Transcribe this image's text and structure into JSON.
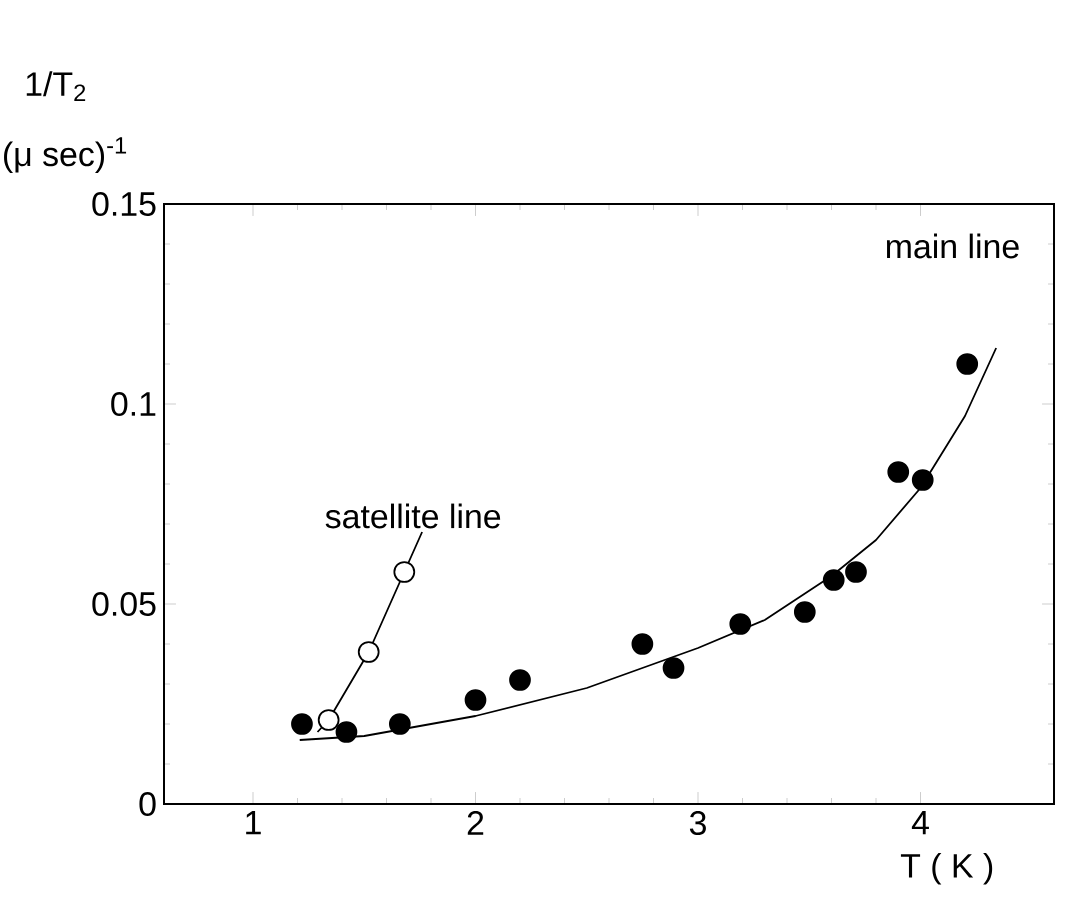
{
  "chart_data": {
    "type": "scatter",
    "xlabel": "T ( K )",
    "ylabel": "1/T$_{2}$",
    "xlim": [
      0.6,
      4.6
    ],
    "ylim": [
      0,
      0.15
    ],
    "xticks": [
      1,
      2,
      3,
      4
    ],
    "yticks": [
      0,
      0.05,
      0.1,
      0.15
    ],
    "series": [
      {
        "type": "line",
        "color": "#000000",
        "marker": "none",
        "x": [
          1.21,
          1.5,
          2,
          2.5,
          3,
          3.3,
          3.6,
          3.8,
          4.0,
          4.2,
          4.34
        ],
        "values": [
          0.016,
          0.017,
          0.022,
          0.029,
          0.039,
          0.046,
          0.057,
          0.066,
          0.079,
          0.097,
          0.114
        ]
      },
      {
        "type": "line",
        "color": "#000000",
        "marker": "none",
        "x": [
          1.29,
          1.34,
          1.52,
          1.68,
          1.76
        ],
        "values": [
          0.018,
          0.021,
          0.038,
          0.058,
          0.068
        ]
      },
      {
        "color": "#000000",
        "marker": "circle",
        "x": [
          1.22,
          1.42,
          1.66,
          2.0,
          2.2,
          2.75,
          2.89,
          3.19,
          3.48,
          3.61,
          3.71,
          3.9,
          4.01,
          4.21
        ],
        "values": [
          0.02,
          0.018,
          0.02,
          0.026,
          0.031,
          0.04,
          0.034,
          0.045,
          0.048,
          0.056,
          0.058,
          0.083,
          0.081,
          0.11
        ]
      },
      {
        "type": "scatter",
        "color": "#ffffff",
        "marker": "circle",
        "x": [
          1.34,
          1.52,
          1.68
        ],
        "values": [
          0.021,
          0.038,
          0.058
        ]
      }
    ],
    "annotations": [
      "main line",
      "satellite line",
      "(μ sec)$^{-1}$"
    ]
  }
}
